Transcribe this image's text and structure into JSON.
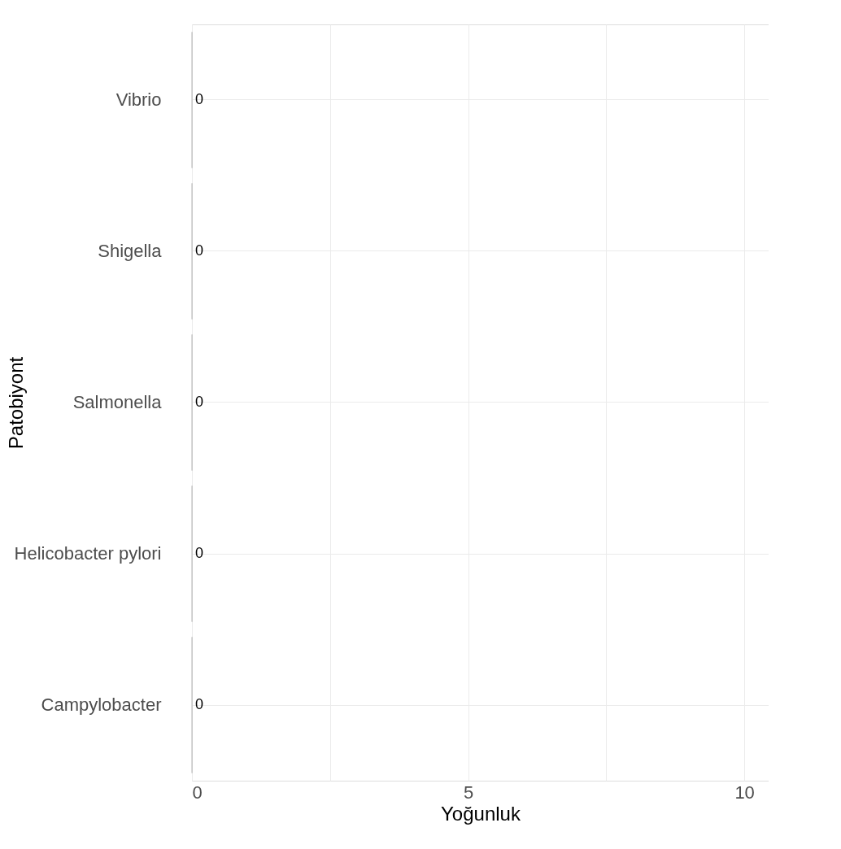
{
  "chart_data": {
    "type": "bar",
    "orientation": "horizontal",
    "xlabel": "Yoğunluk",
    "ylabel": "Patobiyont",
    "categories": [
      "Vibrio",
      "Shigella",
      "Salmonella",
      "Helicobacter pylori",
      "Campylobacter"
    ],
    "values": [
      0,
      0,
      0,
      0,
      0
    ],
    "color": "#595959",
    "data_labels": true,
    "xlim": [
      0,
      10.44
    ],
    "xticks": [
      0,
      {
        "value": 2.5,
        "label": null
      },
      5,
      {
        "value": 7.5,
        "label": null
      },
      10
    ],
    "grid": true
  }
}
